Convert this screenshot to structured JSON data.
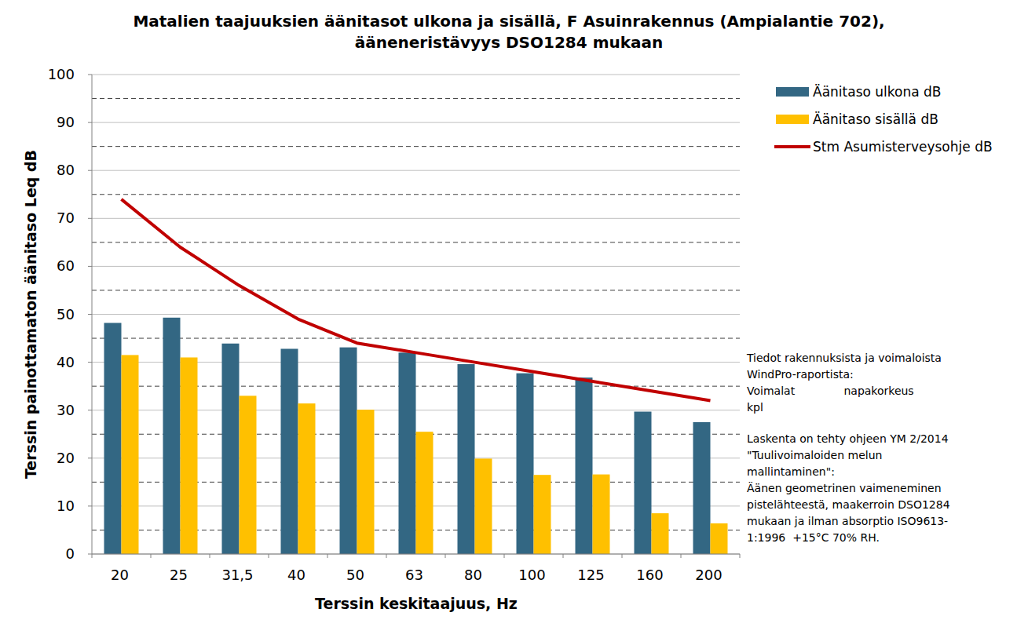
{
  "chart_data": {
    "type": "bar",
    "title": "Matalien taajuuksien äänitasot ulkona ja sisällä, F Asuinrakennus (Ampialantie 702), ääneneristävyys DSO1284 mukaan",
    "x_label": "Terssin keskitaajuus, Hz",
    "y_label": "Terssin painottamaton äänitaso Leq dB",
    "categories": [
      "20",
      "25",
      "31,5",
      "40",
      "50",
      "63",
      "80",
      "100",
      "125",
      "160",
      "200"
    ],
    "series": [
      {
        "name": "Äänitaso ulkona dB",
        "type": "bar",
        "color": "#336783",
        "values": [
          48.2,
          49.3,
          43.9,
          42.8,
          43.1,
          42.0,
          39.6,
          37.7,
          36.8,
          29.7,
          27.5
        ]
      },
      {
        "name": "Äänitaso sisällä dB",
        "type": "bar",
        "color": "#ffc000",
        "values": [
          41.5,
          41.0,
          33.0,
          31.4,
          30.1,
          25.5,
          19.9,
          16.5,
          16.6,
          8.5,
          6.4
        ]
      },
      {
        "name": "Stm Asumisterveysohje dB",
        "type": "line",
        "color": "#c00000",
        "values": [
          74,
          64,
          56,
          49,
          44,
          42,
          40,
          38,
          36,
          34,
          32
        ]
      }
    ],
    "ylim": [
      0,
      100
    ],
    "yticks": [
      0,
      10,
      20,
      30,
      40,
      50,
      60,
      70,
      80,
      90,
      100
    ],
    "grid": true,
    "legend": "right",
    "annotations": [
      [
        "Tiedot rakennuksista ja voimaloista",
        "WindPro-raportista:",
        "Voimalat              napakorkeus",
        "kpl"
      ],
      [
        "Laskenta on tehty ohjeen YM 2/2014",
        "\"Tuulivoimaloiden melun",
        "mallintaminen\":",
        "Äänen geometrinen vaimeneminen",
        "pistelähteestä, maakerroin DSO1284",
        "mukaan ja ilman absorptio ISO9613-",
        "1:1996  +15°C 70% RH."
      ]
    ]
  }
}
